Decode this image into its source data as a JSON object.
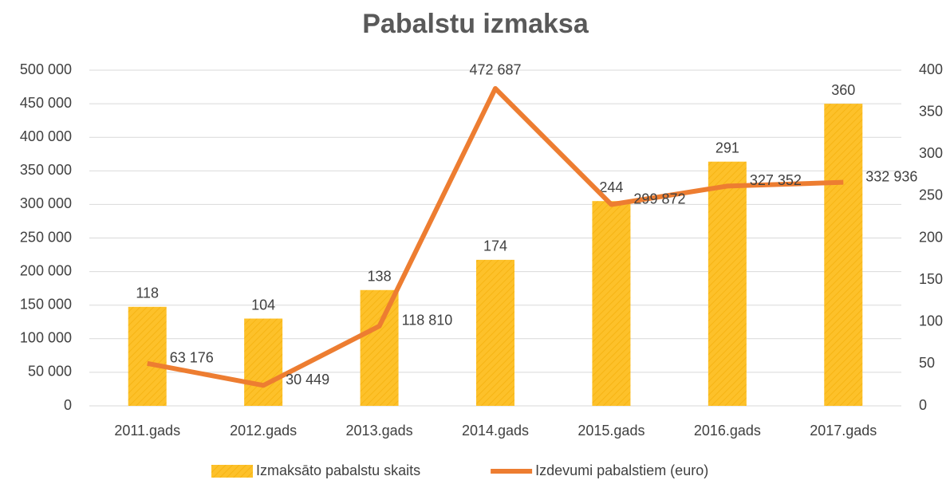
{
  "chart_data": {
    "type": "bar-line",
    "title": "Pabalstu izmaksa",
    "categories": [
      "2011.gads",
      "2012.gads",
      "2013.gads",
      "2014.gads",
      "2015.gads",
      "2016.gads",
      "2017.gads"
    ],
    "series": [
      {
        "name": "Izmaksāto pabalstu skaits",
        "color": "#fdc12a",
        "type": "bar",
        "axis": "y2",
        "values": [
          118,
          104,
          138,
          174,
          244,
          291,
          360
        ]
      },
      {
        "name": "Izdevumi pabalstiem (euro)",
        "color": "#ed7d31",
        "type": "line",
        "axis": "y",
        "values": [
          63176,
          30449,
          118810,
          472687,
          299872,
          327352,
          332936
        ],
        "value_labels": [
          "63 176",
          "30 449",
          "118 810",
          "472 687",
          "299 872",
          "327 352",
          "332 936"
        ]
      }
    ],
    "ylim": [
      0,
      500000
    ],
    "yticks": [
      0,
      {
        "value": 50000,
        "label": "50 000"
      },
      {
        "value": 100000,
        "label": "100 000"
      },
      {
        "value": 150000,
        "label": "150 000"
      },
      {
        "value": 200000,
        "label": "200 000"
      },
      {
        "value": 250000,
        "label": "250 000"
      },
      {
        "value": 300000,
        "label": "300 000"
      },
      {
        "value": 350000,
        "label": "350 000"
      },
      {
        "value": 400000,
        "label": "400 000"
      },
      {
        "value": 450000,
        "label": "450 000"
      },
      {
        "value": 500000,
        "label": "500 000"
      }
    ],
    "y2lim": [
      0,
      400
    ],
    "y2ticks": [
      0,
      50,
      100,
      150,
      200,
      250,
      300,
      350,
      400
    ],
    "grid": true,
    "legend": "bottom"
  }
}
